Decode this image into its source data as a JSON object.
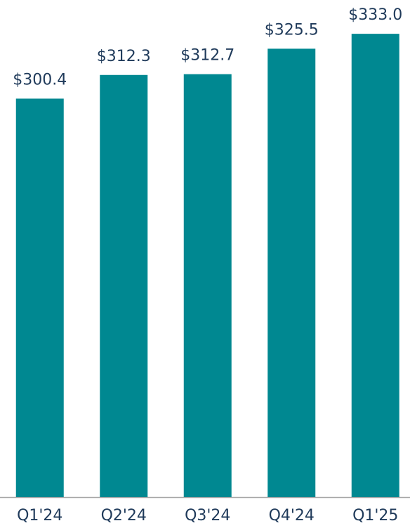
{
  "chart_data": {
    "type": "bar",
    "categories": [
      "Q1'24",
      "Q2'24",
      "Q3'24",
      "Q4'24",
      "Q1'25"
    ],
    "values": [
      300.4,
      312.3,
      312.7,
      325.5,
      333.0
    ],
    "value_labels": [
      "$300.4",
      "$312.3",
      "$312.7",
      "$325.5",
      "$333.0"
    ],
    "color": "#008891",
    "ylim": [
      100,
      350
    ]
  }
}
